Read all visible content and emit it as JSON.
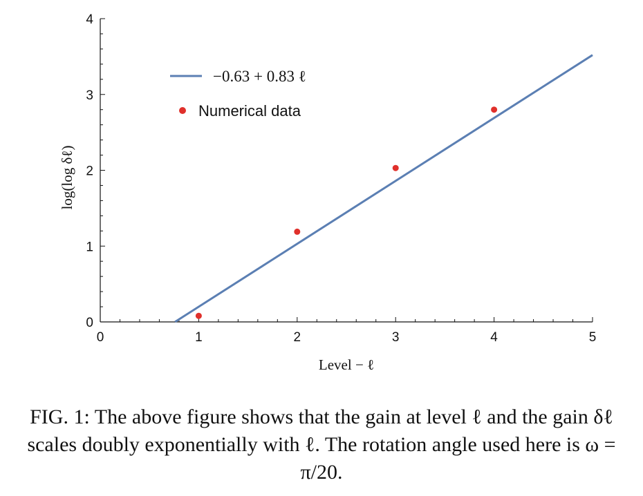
{
  "chart_data": {
    "type": "scatter",
    "title": "",
    "xlabel": "Level − ℓ",
    "ylabel": "log(log δℓ)",
    "xlim": [
      0,
      5
    ],
    "ylim": [
      0,
      4
    ],
    "x_ticks": [
      "0",
      "1",
      "2",
      "3",
      "4",
      "5"
    ],
    "y_ticks": [
      "0",
      "1",
      "2",
      "3",
      "4"
    ],
    "grid": false,
    "legend_position": "top-left",
    "series": [
      {
        "name": "−0.63 + 0.83 ℓ",
        "kind": "line",
        "intercept": -0.63,
        "slope": 0.83,
        "x_range": [
          0.76,
          5
        ],
        "color": "#5b7fb3"
      },
      {
        "name": "Numerical data",
        "kind": "scatter",
        "x": [
          1,
          2,
          3,
          4
        ],
        "y": [
          0.08,
          1.19,
          2.03,
          2.8
        ],
        "color": "#e0302b"
      }
    ]
  },
  "caption": "FIG. 1: The above figure shows that the gain at level ℓ and the gain δℓ scales doubly exponentially with ℓ. The rotation angle used here is ω = π/20."
}
